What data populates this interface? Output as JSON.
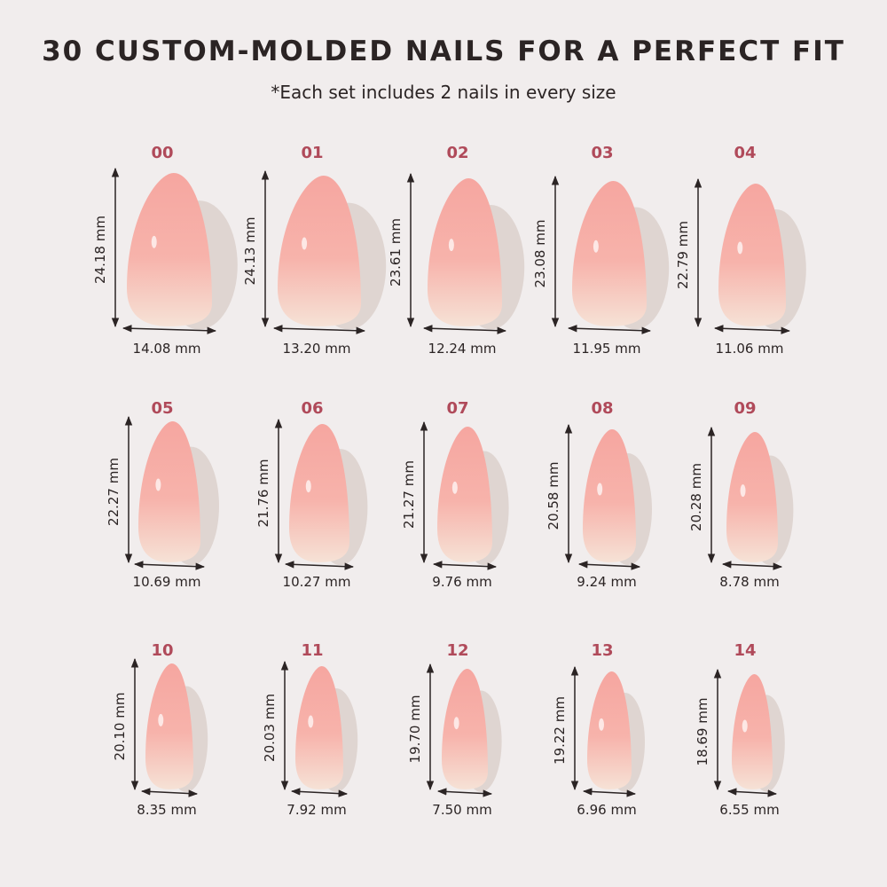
{
  "header": {
    "title": "30 CUSTOM-MOLDED NAILS FOR A PERFECT FIT",
    "subtitle": "*Each set includes 2 nails in every size"
  },
  "nails": [
    {
      "size": "00",
      "height": "24.18 mm",
      "width": "14.08 mm"
    },
    {
      "size": "01",
      "height": "24.13 mm",
      "width": "13.20 mm"
    },
    {
      "size": "02",
      "height": "23.61 mm",
      "width": "12.24 mm"
    },
    {
      "size": "03",
      "height": "23.08 mm",
      "width": "11.95 mm"
    },
    {
      "size": "04",
      "height": "22.79 mm",
      "width": "11.06 mm"
    },
    {
      "size": "05",
      "height": "22.27 mm",
      "width": "10.69 mm"
    },
    {
      "size": "06",
      "height": "21.76 mm",
      "width": "10.27 mm"
    },
    {
      "size": "07",
      "height": "21.27 mm",
      "width": "9.76 mm"
    },
    {
      "size": "08",
      "height": "20.58 mm",
      "width": "9.24 mm"
    },
    {
      "size": "09",
      "height": "20.28 mm",
      "width": "8.78 mm"
    },
    {
      "size": "10",
      "height": "20.10 mm",
      "width": "8.35 mm"
    },
    {
      "size": "11",
      "height": "20.03 mm",
      "width": "7.92 mm"
    },
    {
      "size": "12",
      "height": "19.70 mm",
      "width": "7.50 mm"
    },
    {
      "size": "13",
      "height": "19.22 mm",
      "width": "6.96 mm"
    },
    {
      "size": "14",
      "height": "18.69 mm",
      "width": "6.55 mm"
    }
  ]
}
